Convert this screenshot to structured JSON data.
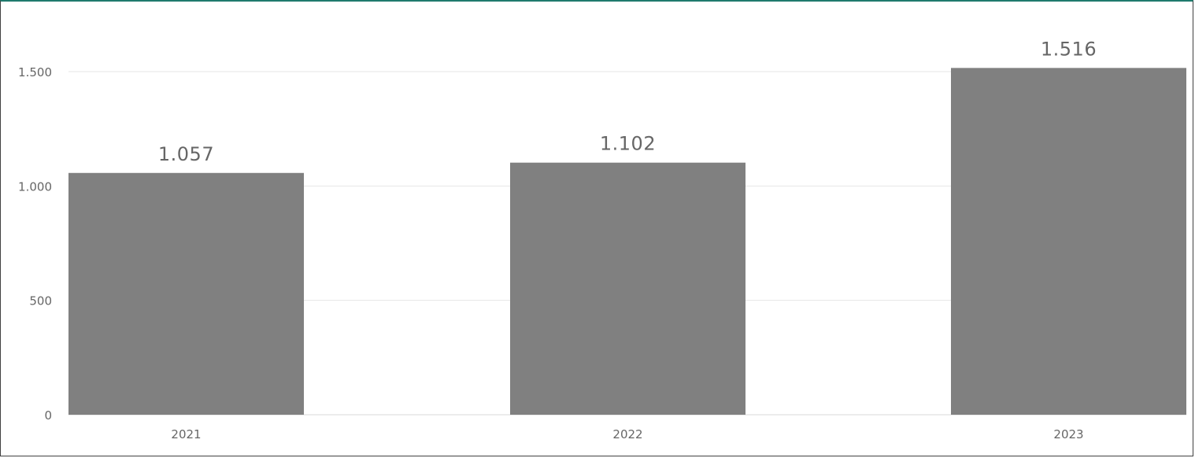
{
  "chart_data": {
    "type": "bar",
    "categories": [
      "2021",
      "2022",
      "2023"
    ],
    "values": [
      1057,
      1102,
      1516
    ],
    "value_labels": [
      "1.057",
      "1.102",
      "1.516"
    ],
    "yticks": [
      0,
      500,
      1000,
      1500
    ],
    "ytick_labels": [
      "0",
      "500",
      "1.000",
      "1.500"
    ],
    "ylim": [
      0,
      1750
    ],
    "title": "",
    "xlabel": "",
    "ylabel": "",
    "grid": true,
    "legend": "none",
    "colors": {
      "bar": "#808080",
      "grid": "#e6e6e6",
      "frame_top": "#1f7a6d",
      "frame": "#404040",
      "text": "#666666"
    }
  }
}
